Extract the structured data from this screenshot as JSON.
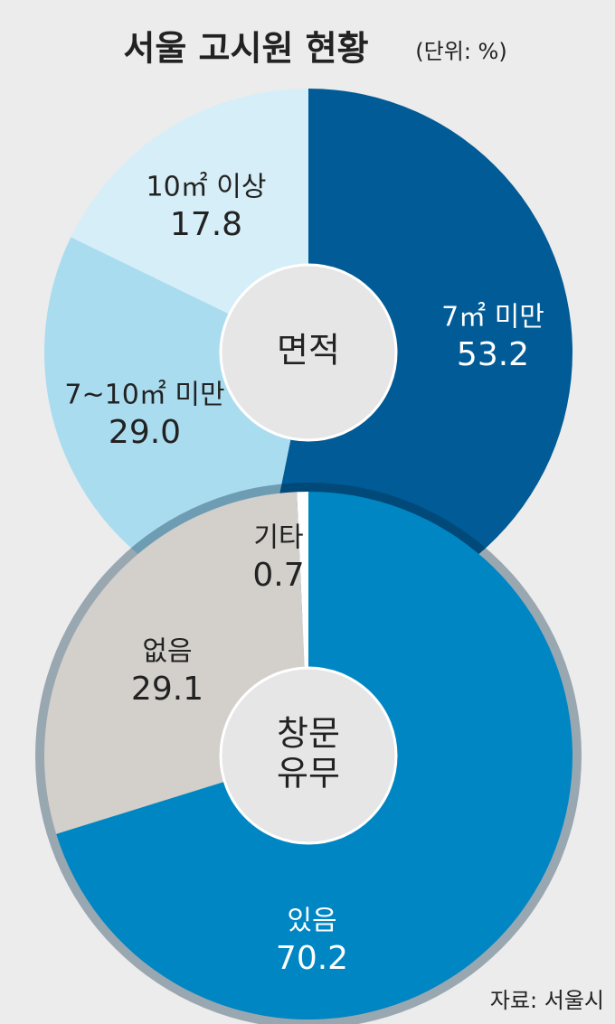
{
  "title": "서울 고시원 현황",
  "subtitle": "(단위: %)",
  "source": "자료: 서울시",
  "chart_data": [
    {
      "type": "donut",
      "center_label": [
        "면적"
      ],
      "categories": [
        "7㎡ 미만",
        "7~10㎡ 미만",
        "10㎡ 이상"
      ],
      "values": [
        53.2,
        29.0,
        17.8
      ],
      "value_labels": [
        "53.2",
        "29.0",
        "17.8"
      ],
      "colors": [
        "#005b96",
        "#aadcef",
        "#d6eef7"
      ]
    },
    {
      "type": "donut",
      "center_label": [
        "창문",
        "유무"
      ],
      "categories": [
        "있음",
        "없음",
        "기타"
      ],
      "values": [
        70.2,
        29.1,
        0.7
      ],
      "value_labels": [
        "70.2",
        "29.1",
        "0.7"
      ],
      "colors": [
        "#0086c3",
        "#d3cfcb",
        "#ffffff"
      ]
    }
  ]
}
